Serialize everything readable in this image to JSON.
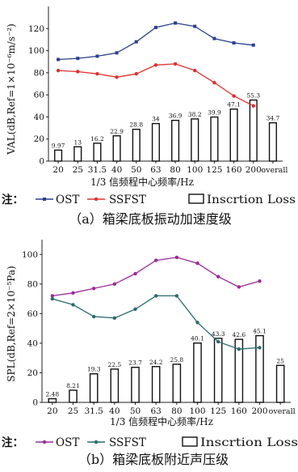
{
  "chart_data": [
    {
      "type": "bar",
      "panel": "a",
      "title": "",
      "caption": "（a）箱梁底板振动加速度级",
      "xlabel": "1/3 信频程中心频率/Hz",
      "ylabel": "VAL(dB,Ref=1×10⁻⁶m/s⁻²)",
      "ylim": [
        0,
        140
      ],
      "yticks": [
        0,
        20,
        40,
        60,
        80,
        100,
        120
      ],
      "categories": [
        "20",
        "25",
        "31.5",
        "40",
        "50",
        "63",
        "80",
        "100",
        "125",
        "160",
        "200",
        "overall"
      ],
      "legend_prefix": "注：",
      "series": [
        {
          "name": "OST",
          "kind": "line",
          "color": "#2a3f8f",
          "values": [
            92,
            93,
            95,
            98,
            108,
            121,
            125,
            122,
            111,
            107,
            105,
            null
          ]
        },
        {
          "name": "SSFST",
          "kind": "line",
          "color": "#e03030",
          "values": [
            82,
            81,
            79,
            76,
            79,
            87,
            88,
            82,
            71,
            59,
            50,
            null
          ]
        },
        {
          "name": "Inscrtion Loss",
          "kind": "bar",
          "color": "#111111",
          "values": [
            9.97,
            13,
            16.2,
            22.9,
            28.8,
            34,
            36.9,
            38.2,
            39.9,
            47.1,
            55.3,
            34.7
          ]
        }
      ]
    },
    {
      "type": "bar",
      "panel": "b",
      "title": "",
      "caption": "（b）箱梁底板附近声压级",
      "xlabel": "1/3 信频程中心频率/Hz",
      "ylabel": "SPL(dB,Ref=2×10⁻⁵Pa)",
      "ylim": [
        0,
        110
      ],
      "yticks": [
        0,
        20,
        40,
        60,
        80,
        100
      ],
      "categories": [
        "20",
        "25",
        "31.5",
        "40",
        "50",
        "63",
        "80",
        "100",
        "125",
        "160",
        "200",
        "overall"
      ],
      "legend_prefix": "注：",
      "series": [
        {
          "name": "OST",
          "kind": "line",
          "color": "#9b2a9b",
          "values": [
            72,
            74,
            77,
            80,
            87,
            96,
            98,
            94,
            85,
            78,
            82,
            null
          ]
        },
        {
          "name": "SSFST",
          "kind": "line",
          "color": "#2a6b6b",
          "values": [
            70,
            66,
            58,
            57,
            63,
            72,
            72,
            54,
            41,
            36,
            37,
            null
          ]
        },
        {
          "name": "Inscrtion Loss",
          "kind": "bar",
          "color": "#111111",
          "values": [
            2.48,
            8.21,
            19.3,
            22.5,
            23.7,
            24.2,
            25.8,
            40.1,
            43.3,
            42.6,
            45.1,
            25
          ]
        }
      ]
    }
  ]
}
